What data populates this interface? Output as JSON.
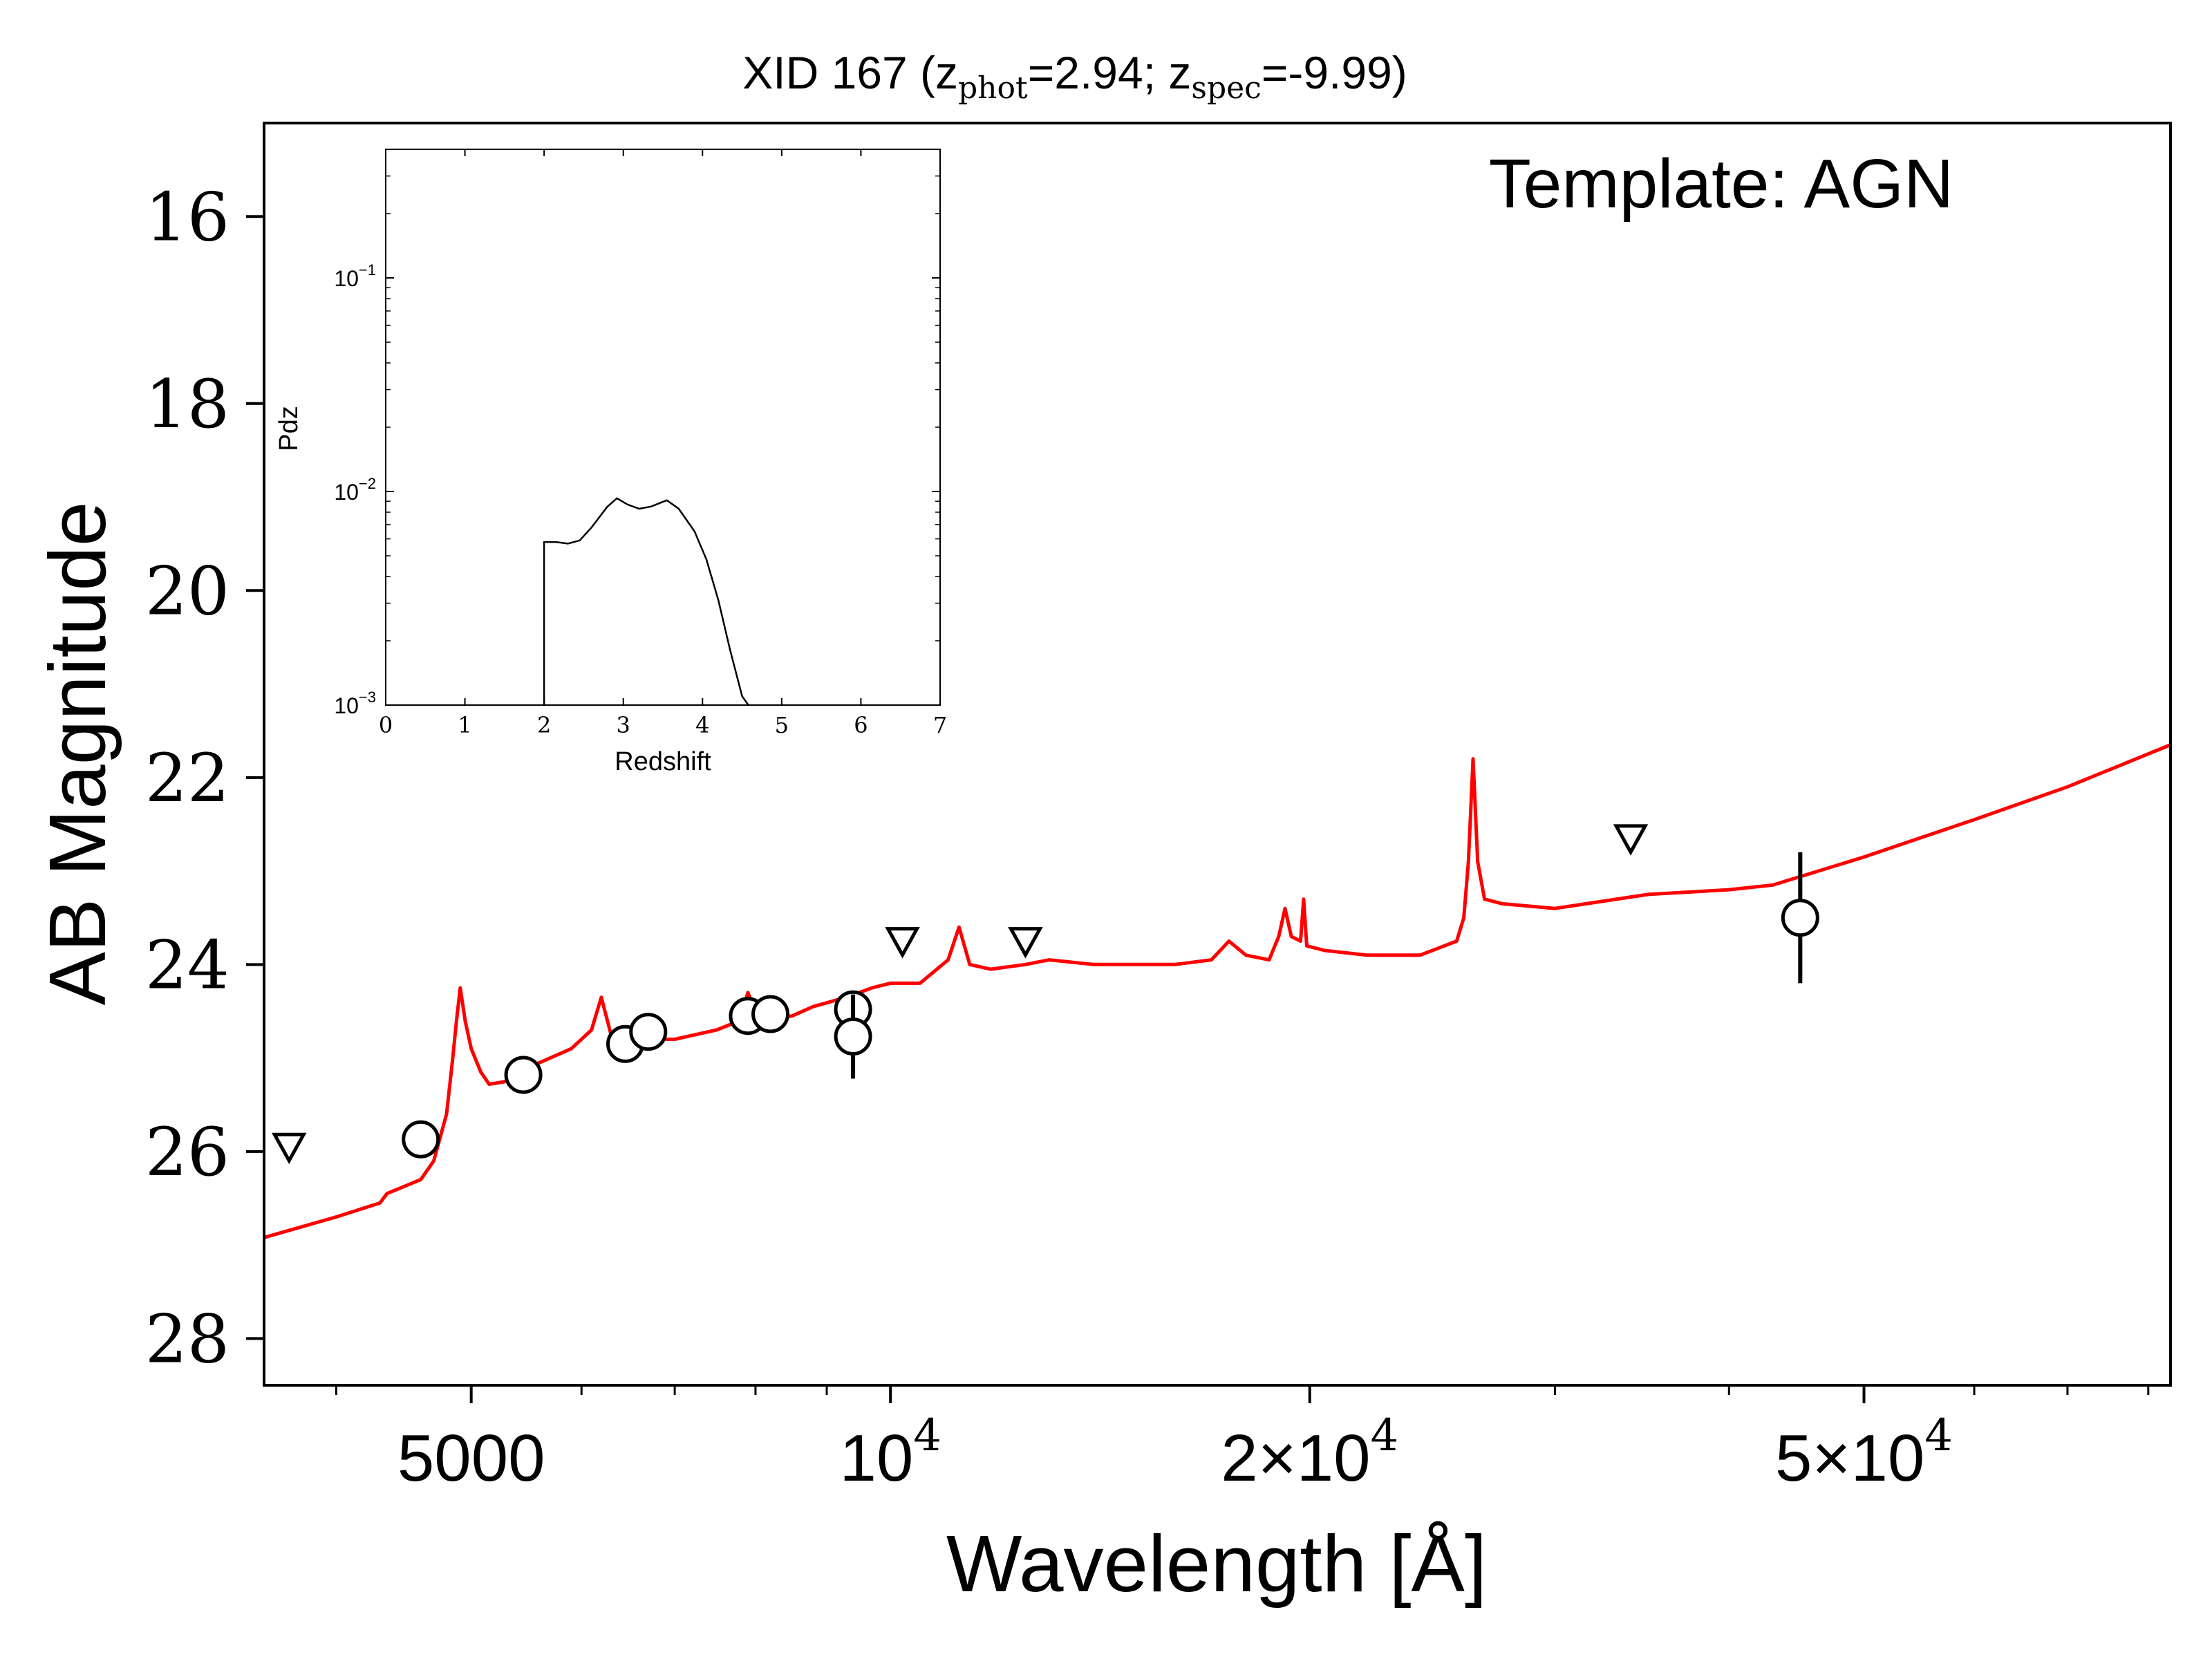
{
  "chart_data": [
    {
      "type": "line",
      "title_parts": {
        "prefix": "XID 167 (z",
        "sub1": "phot",
        "mid": "=2.94; z",
        "sub2": "spec",
        "suffix": "=-9.99)"
      },
      "xlabel": "Wavelength [Å]",
      "ylabel": "AB Magnitude",
      "annotation": "Template: AGN",
      "xscale": "log",
      "xlim": [
        3550,
        83000
      ],
      "ylim": [
        28.5,
        15.0
      ],
      "y_inverted": true,
      "x_ticks": [
        {
          "value": 5000,
          "base": "5000",
          "exp": ""
        },
        {
          "value": 10000,
          "base": "10",
          "exp": "4"
        },
        {
          "value": 20000,
          "base": "2×10",
          "exp": "4"
        },
        {
          "value": 50000,
          "base": "5×10",
          "exp": "4"
        }
      ],
      "y_ticks": [
        "16",
        "18",
        "20",
        "22",
        "24",
        "26",
        "28"
      ],
      "template_color": "#ff0000",
      "template_sed": [
        [
          3550,
          26.92
        ],
        [
          4000,
          26.7
        ],
        [
          4300,
          26.55
        ],
        [
          4350,
          26.45
        ],
        [
          4600,
          26.3
        ],
        [
          4700,
          26.1
        ],
        [
          4800,
          25.6
        ],
        [
          4850,
          25.0
        ],
        [
          4880,
          24.6
        ],
        [
          4910,
          24.25
        ],
        [
          4950,
          24.6
        ],
        [
          5000,
          24.9
        ],
        [
          5080,
          25.15
        ],
        [
          5150,
          25.28
        ],
        [
          5300,
          25.25
        ],
        [
          5500,
          25.1
        ],
        [
          5900,
          24.9
        ],
        [
          6100,
          24.7
        ],
        [
          6200,
          24.35
        ],
        [
          6300,
          24.75
        ],
        [
          6500,
          24.8
        ],
        [
          7000,
          24.8
        ],
        [
          7500,
          24.7
        ],
        [
          7800,
          24.6
        ],
        [
          7900,
          24.3
        ],
        [
          8050,
          24.6
        ],
        [
          8500,
          24.55
        ],
        [
          8800,
          24.45
        ],
        [
          9300,
          24.35
        ],
        [
          9700,
          24.25
        ],
        [
          10000,
          24.2
        ],
        [
          10500,
          24.2
        ],
        [
          11000,
          23.95
        ],
        [
          11200,
          23.6
        ],
        [
          11400,
          24.0
        ],
        [
          11800,
          24.05
        ],
        [
          12500,
          24.0
        ],
        [
          13000,
          23.95
        ],
        [
          14000,
          24.0
        ],
        [
          15000,
          24.0
        ],
        [
          16000,
          24.0
        ],
        [
          17000,
          23.95
        ],
        [
          17500,
          23.75
        ],
        [
          18000,
          23.9
        ],
        [
          18700,
          23.95
        ],
        [
          19000,
          23.7
        ],
        [
          19200,
          23.4
        ],
        [
          19400,
          23.7
        ],
        [
          19700,
          23.75
        ],
        [
          19800,
          23.3
        ],
        [
          19900,
          23.8
        ],
        [
          20500,
          23.85
        ],
        [
          22000,
          23.9
        ],
        [
          24000,
          23.9
        ],
        [
          25500,
          23.75
        ],
        [
          25800,
          23.5
        ],
        [
          26000,
          22.9
        ],
        [
          26200,
          21.8
        ],
        [
          26400,
          22.9
        ],
        [
          26700,
          23.3
        ],
        [
          27500,
          23.35
        ],
        [
          30000,
          23.4
        ],
        [
          35000,
          23.25
        ],
        [
          40000,
          23.2
        ],
        [
          43000,
          23.15
        ],
        [
          50000,
          22.85
        ],
        [
          60000,
          22.45
        ],
        [
          70000,
          22.1
        ],
        [
          83000,
          21.65
        ]
      ],
      "detections": [
        {
          "wavelength": 4600,
          "mag": 25.87,
          "err": 0.0
        },
        {
          "wavelength": 5450,
          "mag": 25.18,
          "err": 0.0
        },
        {
          "wavelength": 6450,
          "mag": 24.85,
          "err": 0.0
        },
        {
          "wavelength": 6700,
          "mag": 24.72,
          "err": 0.0
        },
        {
          "wavelength": 7900,
          "mag": 24.55,
          "err": 0.0
        },
        {
          "wavelength": 8200,
          "mag": 24.53,
          "err": 0.0
        },
        {
          "wavelength": 9400,
          "mag": 24.48,
          "err": 0.0
        },
        {
          "wavelength": 9400,
          "mag": 24.77,
          "err": 0.45
        },
        {
          "wavelength": 45000,
          "mag": 23.5,
          "err": 0.7
        }
      ],
      "upper_limits": [
        {
          "wavelength": 3700,
          "mag": 25.95
        },
        {
          "wavelength": 10200,
          "mag": 23.75
        },
        {
          "wavelength": 12500,
          "mag": 23.75
        },
        {
          "wavelength": 34000,
          "mag": 22.65
        }
      ]
    },
    {
      "type": "line",
      "title": "",
      "xlabel": "Redshift",
      "ylabel": "Pdz",
      "xscale": "linear",
      "yscale": "log",
      "xlim": [
        0,
        7
      ],
      "ylim": [
        0.001,
        0.4
      ],
      "x_ticks": [
        "0",
        "1",
        "2",
        "3",
        "4",
        "5",
        "6",
        "7"
      ],
      "y_ticks": [
        {
          "value": 0.1,
          "base": "10",
          "exp": "−1"
        },
        {
          "value": 0.01,
          "base": "10",
          "exp": "−2"
        },
        {
          "value": 0.001,
          "base": "10",
          "exp": "−3"
        }
      ],
      "pdz": [
        [
          2.0,
          0.001
        ],
        [
          2.0,
          0.0058
        ],
        [
          2.15,
          0.0058
        ],
        [
          2.3,
          0.0057
        ],
        [
          2.45,
          0.0059
        ],
        [
          2.6,
          0.0068
        ],
        [
          2.8,
          0.0085
        ],
        [
          2.92,
          0.0093
        ],
        [
          3.05,
          0.0087
        ],
        [
          3.2,
          0.0083
        ],
        [
          3.35,
          0.0085
        ],
        [
          3.55,
          0.0091
        ],
        [
          3.7,
          0.0083
        ],
        [
          3.9,
          0.0065
        ],
        [
          4.05,
          0.0048
        ],
        [
          4.2,
          0.0031
        ],
        [
          4.35,
          0.0018
        ],
        [
          4.5,
          0.0011
        ],
        [
          4.58,
          0.001
        ]
      ]
    }
  ]
}
